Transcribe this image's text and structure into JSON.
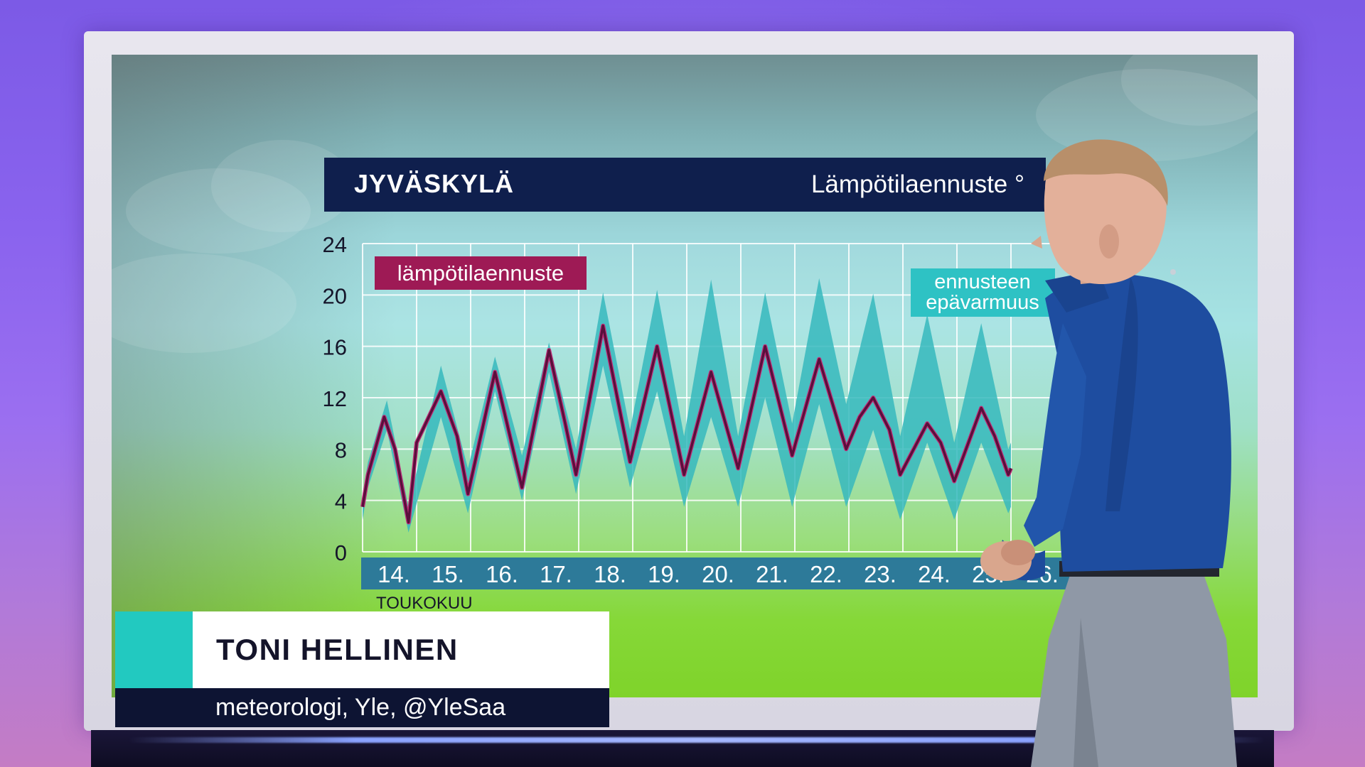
{
  "broadcast": {
    "city": "JYVÄSKYLÄ",
    "chart_title": "Lämpötilaennuste °",
    "presenter_name": "TONI HELLINEN",
    "presenter_role": "meteorologi, Yle, @YleSaa"
  },
  "colors": {
    "title_bar": "#0f1f4d",
    "forecast_line": "#5a0f3c",
    "forecast_line_outline": "#c0307a",
    "uncertainty_band": "#36b8bd",
    "forecast_label_bg": "#9e1a55",
    "uncertainty_label_bg": "#2ec2c4",
    "date_axis_bg": "#2d7a99",
    "lower_third_accent": "#22c9c0",
    "lower_third_role_bg": "#0d1433"
  },
  "chart_data": {
    "type": "line",
    "title": "Lämpötilaennuste °",
    "ylim": [
      0,
      24
    ],
    "yticks": [
      "0",
      "4",
      "8",
      "12",
      "16",
      "20",
      "24"
    ],
    "xticks": [
      "14.",
      "15.",
      "16.",
      "17.",
      "18.",
      "19.",
      "20.",
      "21.",
      "22.",
      "23.",
      "24.",
      "25.",
      "26."
    ],
    "x_caption": "TOUKOKUU",
    "grid": true,
    "x_day_start": 14,
    "series": [
      {
        "name": "lämpötilaennuste",
        "x": [
          14.0,
          14.1,
          14.4,
          14.6,
          14.85,
          15.0,
          15.45,
          15.75,
          15.95,
          16.45,
          16.95,
          17.45,
          17.75,
          17.95,
          18.45,
          18.95,
          19.45,
          19.95,
          20.45,
          20.95,
          21.45,
          21.95,
          22.45,
          22.95,
          23.2,
          23.45,
          23.75,
          23.95,
          24.45,
          24.7,
          24.95,
          25.45,
          25.7,
          25.95,
          26.0
        ],
        "values": [
          3.5,
          6,
          10.5,
          8,
          2.3,
          8.5,
          12.5,
          9,
          4.5,
          14,
          5,
          15.7,
          10,
          6,
          17.6,
          7,
          16,
          6,
          14,
          6.5,
          16,
          7.5,
          15,
          8,
          10.5,
          12,
          9.5,
          6,
          10,
          8.5,
          5.5,
          11.2,
          9,
          6,
          6.5
        ]
      },
      {
        "name": "ennusteen epävarmuus",
        "x": [
          14.0,
          14.1,
          14.45,
          14.85,
          15.45,
          15.95,
          16.45,
          16.95,
          17.45,
          17.95,
          18.45,
          18.95,
          19.45,
          19.95,
          20.45,
          20.95,
          21.45,
          21.95,
          22.45,
          22.95,
          23.45,
          23.95,
          24.45,
          24.95,
          25.45,
          25.95,
          26.0
        ],
        "upper": [
          4.5,
          7,
          11.8,
          3.5,
          14.5,
          6.5,
          15.2,
          7.5,
          16.3,
          8,
          20.2,
          9.5,
          20.4,
          9,
          21.2,
          9,
          20.2,
          10,
          21.3,
          11.5,
          20.1,
          9,
          18.5,
          8.5,
          17.8,
          8,
          8.5
        ],
        "lower": [
          2.5,
          5,
          9.5,
          1.5,
          10.5,
          3,
          12.5,
          4,
          14,
          4.5,
          14.5,
          5,
          12.5,
          3.5,
          10.5,
          3.5,
          12,
          3.5,
          11.5,
          3.5,
          9.5,
          2.5,
          8.5,
          2.5,
          8.5,
          3,
          3.5
        ]
      }
    ],
    "annotations": [
      {
        "text": "lämpötilaennuste"
      },
      {
        "text": "ennusteen\nepävarmuus"
      }
    ]
  }
}
